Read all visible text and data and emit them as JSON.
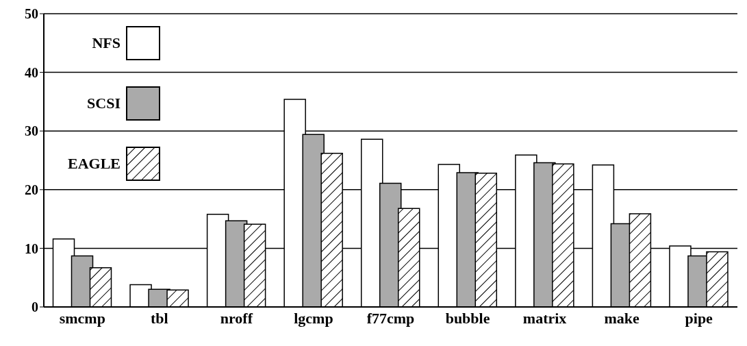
{
  "chart_data": {
    "type": "bar",
    "categories": [
      "smcmp",
      "tbl",
      "nroff",
      "lgcmp",
      "f77cmp",
      "bubble",
      "matrix",
      "make",
      "pipe"
    ],
    "series": [
      {
        "name": "NFS",
        "color": "#ffffff",
        "values": [
          11.6,
          3.8,
          15.8,
          35.4,
          28.6,
          24.3,
          25.9,
          24.2,
          10.4
        ]
      },
      {
        "name": "SCSI",
        "color": "#aaaaaa",
        "values": [
          8.7,
          3.0,
          14.7,
          29.4,
          21.1,
          22.9,
          24.6,
          14.2,
          8.7
        ]
      },
      {
        "name": "EAGLE",
        "color": "#000000",
        "values": [
          6.7,
          2.9,
          14.1,
          26.2,
          16.8,
          22.8,
          24.4,
          15.9,
          9.4
        ]
      }
    ],
    "ylim": [
      0,
      50
    ],
    "yticks": [
      0,
      10,
      20,
      30,
      40,
      50
    ],
    "grid": "y",
    "legend": "top left"
  }
}
